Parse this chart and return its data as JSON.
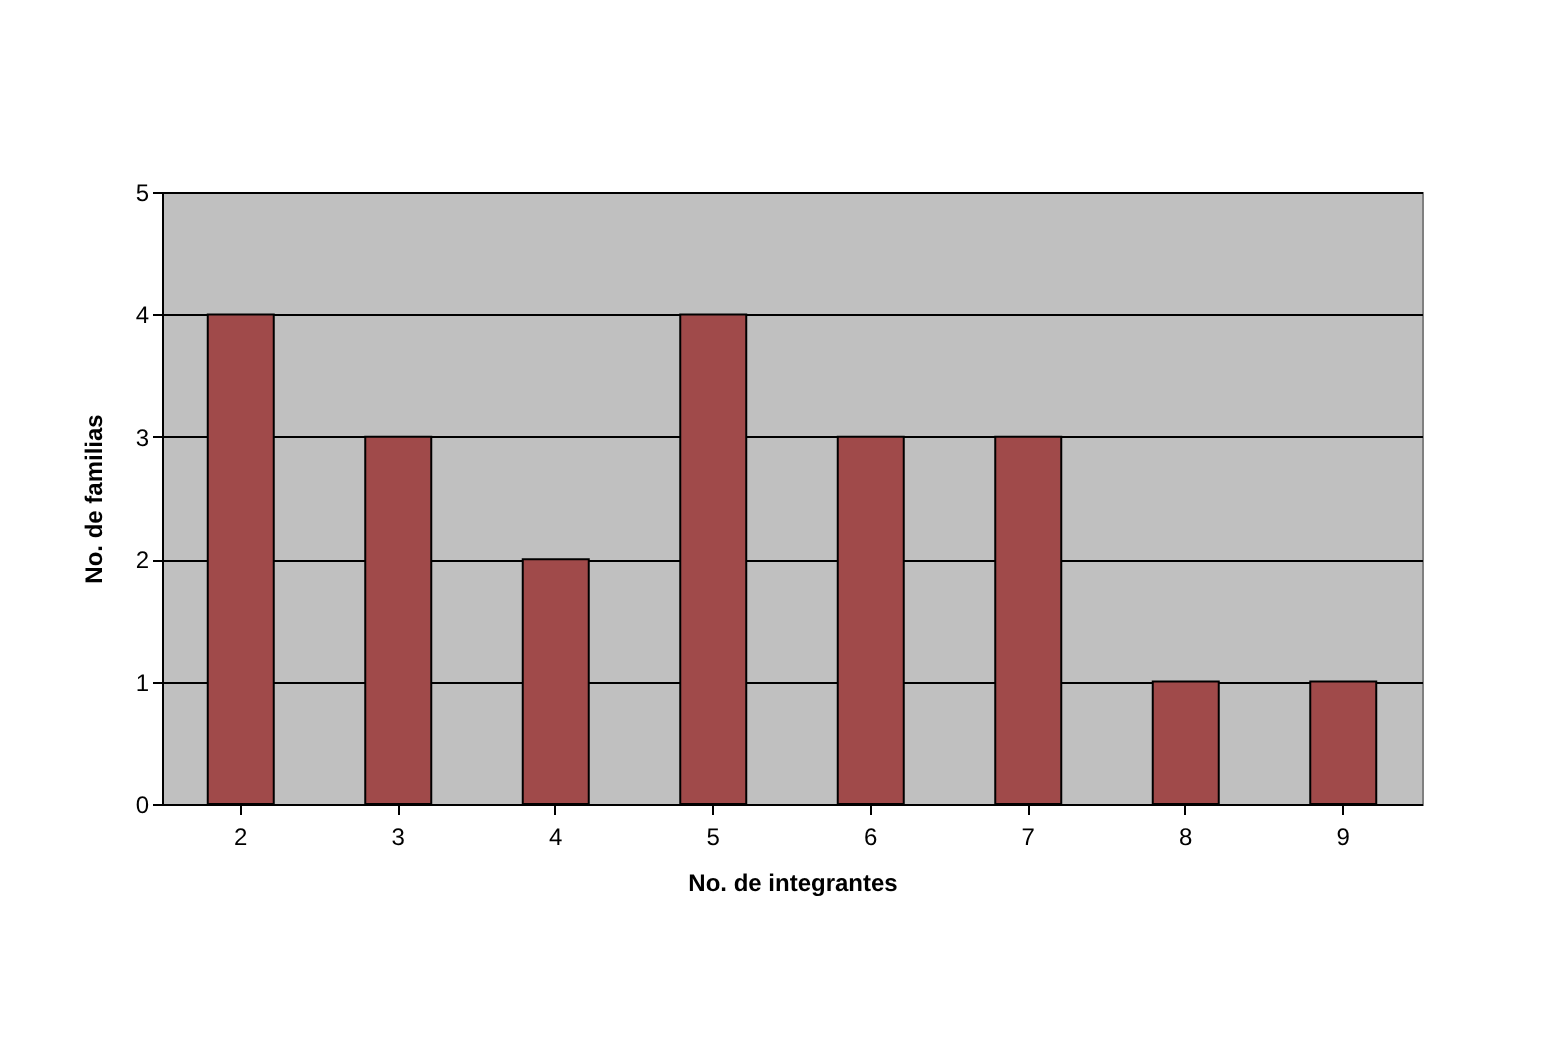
{
  "chart_data": {
    "type": "bar",
    "xlabel": "No. de integrantes",
    "ylabel": "No. de familias",
    "categories": [
      "2",
      "3",
      "4",
      "5",
      "6",
      "7",
      "8",
      "9"
    ],
    "values": [
      4,
      3,
      2,
      4,
      3,
      3,
      1,
      1
    ],
    "color": "#a04a4a",
    "ylim": [
      0,
      5
    ],
    "yticks": [
      0,
      1,
      2,
      3,
      4,
      5
    ],
    "grid": "y"
  }
}
